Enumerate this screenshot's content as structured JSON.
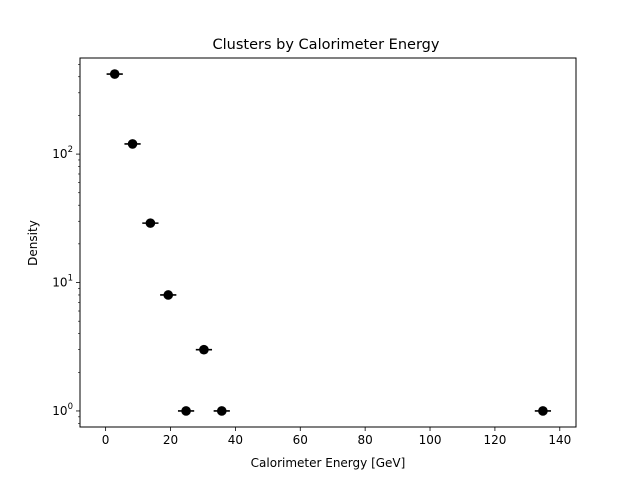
{
  "chart_data": {
    "type": "scatter",
    "title": "Clusters by Calorimeter Energy",
    "xlabel": "Calorimeter Energy [GeV]",
    "ylabel": "Density",
    "xlim": [
      -7.9,
      145
    ],
    "ylim": [
      0.75,
      560
    ],
    "yscale": "log",
    "grid": false,
    "x_ticks": [
      {
        "value": 0,
        "label": "0"
      },
      {
        "value": 20,
        "label": "20"
      },
      {
        "value": 40,
        "label": "40"
      },
      {
        "value": 60,
        "label": "60"
      },
      {
        "value": 80,
        "label": "80"
      },
      {
        "value": 100,
        "label": "100"
      },
      {
        "value": 120,
        "label": "120"
      },
      {
        "value": 140,
        "label": "140"
      }
    ],
    "y_ticks": [
      {
        "value": 1,
        "base": "10",
        "exp": "0"
      },
      {
        "value": 10,
        "base": "10",
        "exp": "1"
      },
      {
        "value": 100,
        "base": "10",
        "exp": "2"
      }
    ],
    "series": [
      {
        "color": "#000000",
        "marker": "circle",
        "points": [
          {
            "x": 2.8,
            "y": 420,
            "xerr": 2.5
          },
          {
            "x": 8.3,
            "y": 120,
            "xerr": 2.5
          },
          {
            "x": 13.8,
            "y": 29,
            "xerr": 2.5
          },
          {
            "x": 19.3,
            "y": 8,
            "xerr": 2.5
          },
          {
            "x": 24.8,
            "y": 1,
            "xerr": 2.5
          },
          {
            "x": 30.3,
            "y": 3,
            "xerr": 2.5
          },
          {
            "x": 35.8,
            "y": 1,
            "xerr": 2.5
          },
          {
            "x": 134.8,
            "y": 1,
            "xerr": 2.5
          }
        ]
      }
    ]
  }
}
